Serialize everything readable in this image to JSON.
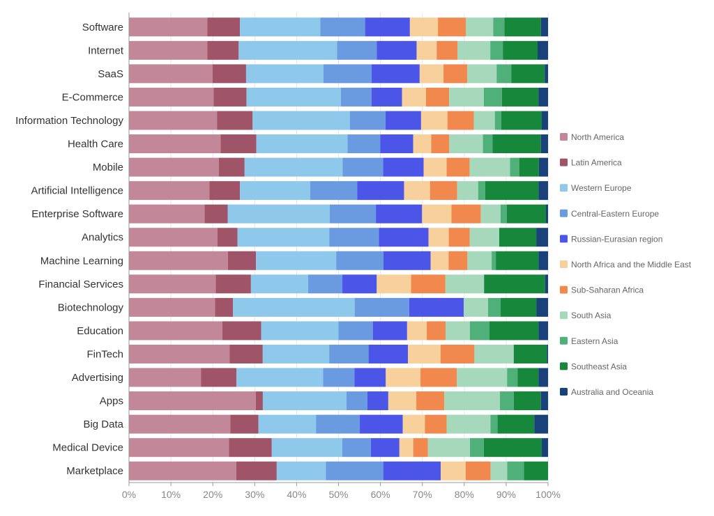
{
  "chart_data": {
    "type": "bar",
    "orientation": "horizontal",
    "stacked": true,
    "normalized": true,
    "categories": [
      "Software",
      "Internet",
      "SaaS",
      "E-Commerce",
      "Information Technology",
      "Health Care",
      "Mobile",
      "Artificial Intelligence",
      "Enterprise Software",
      "Analytics",
      "Machine Learning",
      "Financial Services",
      "Biotechnology",
      "Education",
      "FinTech",
      "Advertising",
      "Apps",
      "Big Data",
      "Medical Device",
      "Marketplace"
    ],
    "x_ticks": [
      "0%",
      "10%",
      "20%",
      "30%",
      "40%",
      "50%",
      "60%",
      "70%",
      "80%",
      "90%",
      "100%"
    ],
    "xlim": [
      0,
      100
    ],
    "grid": true,
    "legend_position": "right",
    "series": [
      {
        "name": "North America",
        "color": "#c2889a",
        "values": [
          18.7,
          18.7,
          20.0,
          20.2,
          21.0,
          21.8,
          21.5,
          19.2,
          18.0,
          21.0,
          23.7,
          20.2,
          20.5,
          22.3,
          23.8,
          17.2,
          30.3,
          24.3,
          23.8,
          25.8
        ]
      },
      {
        "name": "Latin America",
        "color": "#a05468",
        "values": [
          7.8,
          7.5,
          8.0,
          7.8,
          8.5,
          8.5,
          6.2,
          7.3,
          5.5,
          4.8,
          6.7,
          8.2,
          4.3,
          9.3,
          7.8,
          8.5,
          1.7,
          6.7,
          10.2,
          9.7
        ]
      },
      {
        "name": "Western Europe",
        "color": "#8ec8ea",
        "values": [
          19.2,
          23.5,
          18.5,
          22.5,
          23.2,
          21.7,
          23.5,
          16.8,
          24.3,
          21.8,
          19.2,
          13.3,
          29.0,
          18.5,
          15.7,
          20.7,
          20.0,
          13.8,
          16.8,
          11.8
        ]
      },
      {
        "name": "Central-Eastern Europe",
        "color": "#6a9be0",
        "values": [
          10.7,
          9.5,
          11.5,
          7.3,
          8.5,
          7.8,
          9.7,
          11.2,
          11.0,
          11.8,
          11.3,
          8.0,
          13.0,
          8.2,
          9.3,
          7.5,
          5.0,
          10.5,
          6.8,
          13.8
        ]
      },
      {
        "name": "Russian-Eurasian region",
        "color": "#4b55e8",
        "values": [
          10.7,
          9.5,
          11.5,
          7.3,
          8.5,
          7.8,
          9.7,
          11.2,
          11.0,
          11.8,
          11.3,
          8.0,
          13.0,
          8.2,
          9.3,
          7.5,
          5.0,
          10.3,
          6.8,
          13.8
        ]
      },
      {
        "name": "North Africa and the Middle East",
        "color": "#f7d09c",
        "values": [
          6.7,
          4.8,
          5.7,
          5.7,
          6.3,
          4.3,
          5.5,
          6.2,
          7.0,
          4.8,
          4.3,
          8.0,
          0.0,
          4.7,
          7.7,
          8.3,
          6.7,
          5.3,
          3.3,
          6.0
        ]
      },
      {
        "name": "Sub-Saharan Africa",
        "color": "#f1894f",
        "values": [
          6.7,
          5.0,
          5.7,
          5.5,
          6.3,
          4.3,
          5.5,
          6.5,
          7.0,
          5.0,
          4.5,
          8.0,
          0.0,
          4.5,
          8.0,
          8.7,
          6.7,
          5.2,
          3.5,
          6.0
        ]
      },
      {
        "name": "South Asia",
        "color": "#a6d9bc",
        "values": [
          6.5,
          7.8,
          7.0,
          8.3,
          5.0,
          8.0,
          9.7,
          5.0,
          4.7,
          7.0,
          5.8,
          9.0,
          5.8,
          5.8,
          9.3,
          12.0,
          13.3,
          10.5,
          10.0,
          4.0
        ]
      },
      {
        "name": "Eastern Asia",
        "color": "#50b07a",
        "values": [
          2.7,
          3.0,
          3.5,
          4.3,
          1.5,
          2.3,
          2.2,
          1.7,
          1.5,
          0.0,
          1.0,
          0.0,
          3.0,
          4.7,
          0.0,
          2.5,
          3.3,
          1.7,
          3.3,
          4.0
        ]
      },
      {
        "name": "Southeast Asia",
        "color": "#17873c",
        "values": [
          8.7,
          8.3,
          8.0,
          8.7,
          9.7,
          11.5,
          4.7,
          12.7,
          9.3,
          8.8,
          10.2,
          14.2,
          8.5,
          11.7,
          7.8,
          5.0,
          6.5,
          8.8,
          13.8,
          5.8
        ]
      },
      {
        "name": "Australia and Oceania",
        "color": "#1a427a",
        "values": [
          1.7,
          2.5,
          0.8,
          2.3,
          1.5,
          1.7,
          2.2,
          2.3,
          0.5,
          2.8,
          2.3,
          0.7,
          2.8,
          2.3,
          0.3,
          2.3,
          1.7,
          3.3,
          1.5,
          0.0
        ]
      }
    ]
  }
}
